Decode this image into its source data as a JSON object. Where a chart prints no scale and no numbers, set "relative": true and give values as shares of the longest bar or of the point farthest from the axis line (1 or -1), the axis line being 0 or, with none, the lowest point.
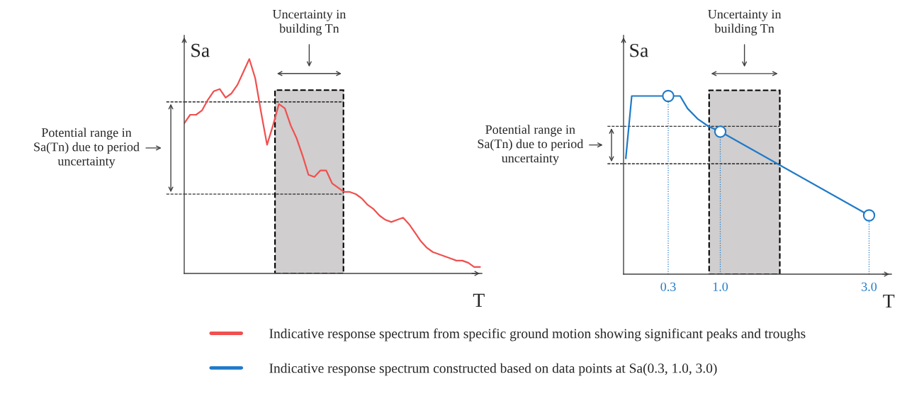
{
  "chart_data": [
    {
      "type": "line",
      "relative": true,
      "ylabel": "Sa",
      "xlabel": "T",
      "tick_labels": false,
      "legend": "bottom",
      "categories": [
        null,
        null,
        null,
        null,
        null,
        null,
        null,
        null,
        null,
        null,
        null,
        null,
        null,
        null,
        null,
        null,
        null,
        null,
        null,
        null,
        null,
        null,
        null,
        null,
        null,
        null,
        null,
        null,
        null,
        null,
        null,
        null,
        null,
        null,
        null,
        null,
        null,
        null,
        null,
        null,
        null,
        null,
        null,
        null,
        null,
        null,
        null,
        null,
        null,
        null,
        null
      ],
      "series": [
        {
          "name": "Indicative response spectrum from specific ground motion showing significant peaks and troughs",
          "color": "#f0504f",
          "values": [
            0.7,
            0.74,
            0.74,
            0.76,
            0.81,
            0.85,
            0.86,
            0.82,
            0.84,
            0.88,
            0.94,
            1.0,
            0.91,
            0.75,
            0.6,
            0.69,
            0.79,
            0.77,
            0.69,
            0.63,
            0.55,
            0.46,
            0.45,
            0.48,
            0.48,
            0.42,
            0.4,
            0.38,
            0.38,
            0.37,
            0.35,
            0.32,
            0.3,
            0.27,
            0.25,
            0.24,
            0.25,
            0.26,
            0.23,
            0.19,
            0.15,
            0.12,
            0.1,
            0.09,
            0.08,
            0.07,
            0.06,
            0.06,
            0.05,
            0.03,
            0.03
          ]
        }
      ],
      "ref_lines": [
        {
          "axis": "y",
          "value": 0.8,
          "color": "#000000",
          "line_style": "dashed"
        },
        {
          "axis": "y",
          "value": 0.37,
          "color": "#000000",
          "line_style": "dashed"
        }
      ],
      "annotations": [
        "Uncertainty in\nbuilding Tn",
        "Potential range in\nSa(Tn) due to period\nuncertainty"
      ]
    },
    {
      "type": "line",
      "relative": true,
      "ylabel": "Sa",
      "xlabel": "T",
      "tick_labels": "x",
      "legend": "bottom",
      "xlim": [
        -0.3,
        3.3
      ],
      "xticks": [
        0.3,
        {
          "value": 1.0,
          "label": "1.0"
        },
        {
          "value": 3.0,
          "label": "3.0"
        }
      ],
      "series": [
        {
          "name": "Indicative response spectrum constructed based on data points at Sa(0.3, 1.0, 3.0)",
          "color": "#1f7ac9",
          "x": [
            -0.27,
            -0.19,
            0.46,
            0.56,
            0.7,
            0.84,
            1.0,
            3.0
          ],
          "values": [
            0.65,
            1.0,
            1.0,
            0.93,
            0.87,
            0.83,
            0.8,
            0.33
          ]
        },
        {
          "type": "lollipop",
          "color": "#1f7ac9",
          "marker": "circle",
          "line_style": "dotted",
          "x": [
            0.3,
            1.0,
            3.0
          ],
          "values": [
            1.0,
            0.8,
            0.33
          ]
        }
      ],
      "bands": [
        {
          "axis": "x",
          "from": 0.85,
          "to": 1.8,
          "color": "#d0cece"
        }
      ],
      "ref_lines": [
        {
          "axis": "y",
          "value": 0.83,
          "color": "#000000",
          "line_style": "dashed"
        },
        {
          "axis": "y",
          "value": 0.62,
          "color": "#000000",
          "line_style": "dashed"
        }
      ],
      "annotations": [
        "Uncertainty in\nbuilding Tn",
        "Potential range in\nSa(Tn) due to period\nuncertainty"
      ]
    }
  ]
}
